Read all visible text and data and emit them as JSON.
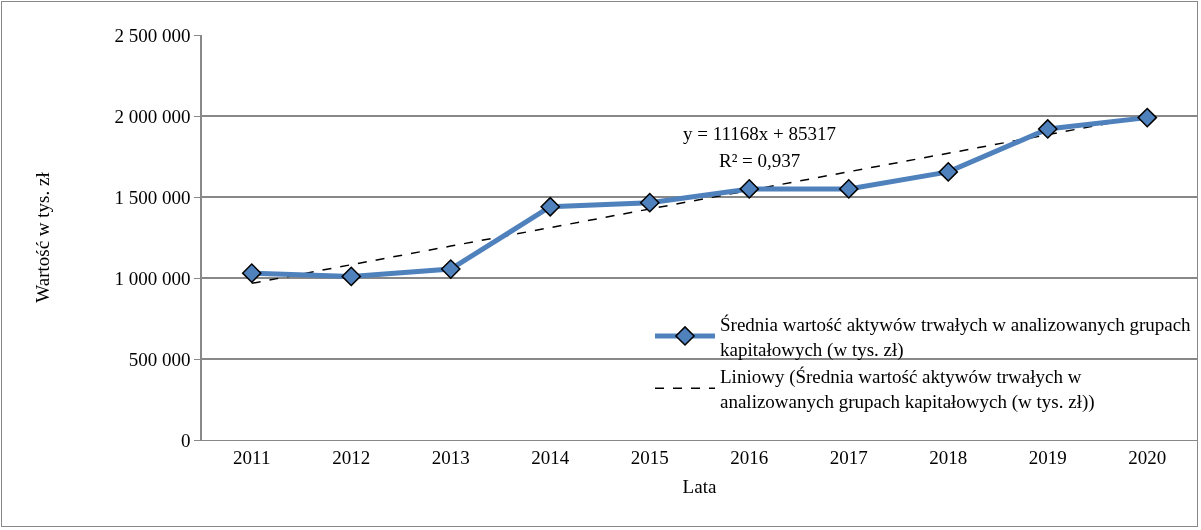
{
  "chart_data": {
    "type": "line",
    "xlabel": "Lata",
    "ylabel": "Wartość w tys. zł",
    "categories": [
      "2011",
      "2012",
      "2013",
      "2014",
      "2015",
      "2016",
      "2017",
      "2018",
      "2019",
      "2020"
    ],
    "series": [
      {
        "name": "Średnia wartość aktywów trwałych w analizowanych grupach kapitałowych (w tys. zł)",
        "color": "#4f81bd",
        "marker": "diamond",
        "line_style": "solid",
        "values": [
          1030000,
          1010000,
          1055000,
          1440000,
          1465000,
          1550000,
          1550000,
          1655000,
          1920000,
          1990000
        ]
      },
      {
        "name": "Liniowy (Średnia wartość aktywów trwałych w analizowanych grupach kapitałowych (w tys. zł))",
        "type": "line",
        "color": "#000000",
        "marker": "none",
        "line_style": "dashed",
        "values": [
          967000,
          1082000,
          1197000,
          1311000,
          1426000,
          1541000,
          1656000,
          1770000,
          1885000,
          2000000
        ]
      }
    ],
    "annotations": [
      "y = 11168x + 85317",
      "R² = 0,937"
    ],
    "ylim": [
      0,
      2500000
    ],
    "yticks": [
      {
        "value": 0,
        "label": "0"
      },
      {
        "value": 500000,
        "label": "500 000"
      },
      {
        "value": 1000000,
        "label": "1 000 000"
      },
      {
        "value": 1500000,
        "label": "1 500 000"
      },
      {
        "value": 2000000,
        "label": "2 000 000"
      },
      {
        "value": 2500000,
        "label": "2 500 000"
      }
    ],
    "grid": "y",
    "legend": "bottom right"
  }
}
